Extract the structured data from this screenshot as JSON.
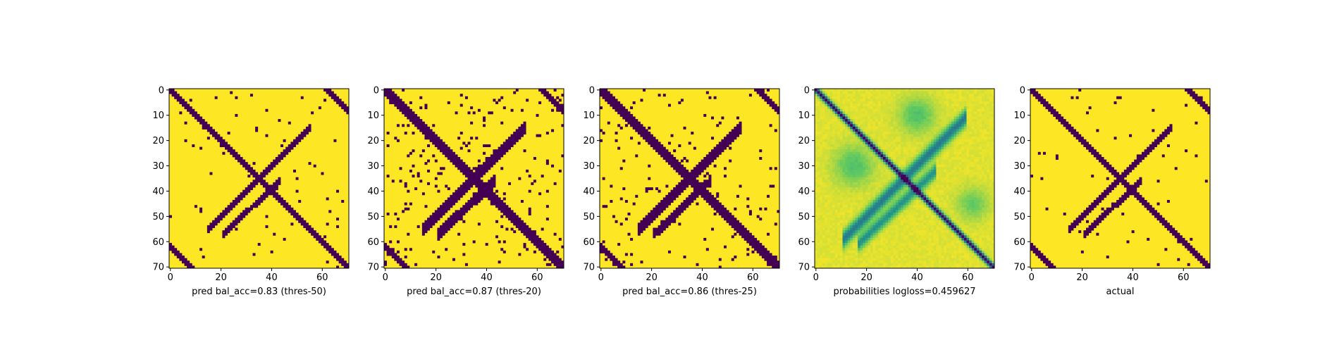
{
  "palette": {
    "low": "#440154",
    "mid_dark": "#3b528b",
    "mid": "#21918c",
    "mid_light": "#5ec962",
    "high": "#fde725"
  },
  "chart_data": [
    {
      "type": "heatmap",
      "title": "",
      "xlabel": "pred bal_acc=0.83 (thres-50)",
      "ylabel": "",
      "size": 71,
      "xlim": [
        0,
        70
      ],
      "ylim": [
        70,
        0
      ],
      "xticks": [
        0,
        20,
        40,
        60
      ],
      "yticks": [
        0,
        10,
        20,
        30,
        40,
        50,
        60,
        70
      ],
      "value_encoding": "0 = dark purple (contact), 1 = yellow (no contact)",
      "values": "binary contact map: main diagonal band, anti-diagonal band crossing near (35,35), off-diagonal corner bands"
    },
    {
      "type": "heatmap",
      "title": "",
      "xlabel": "pred bal_acc=0.87 (thres-20)",
      "ylabel": "",
      "size": 71,
      "xlim": [
        0,
        70
      ],
      "ylim": [
        70,
        0
      ],
      "xticks": [
        0,
        20,
        40,
        60
      ],
      "yticks": [
        0,
        10,
        20,
        30,
        40,
        50,
        60,
        70
      ],
      "value_encoding": "0 = dark purple (contact), 1 = yellow (no contact)",
      "values": "binary contact map: thicker diagonal and anti-diagonal bands with more scattered blobs"
    },
    {
      "type": "heatmap",
      "title": "",
      "xlabel": "pred bal_acc=0.86 (thres-25)",
      "ylabel": "",
      "size": 71,
      "xlim": [
        0,
        70
      ],
      "ylim": [
        70,
        0
      ],
      "xticks": [
        0,
        20,
        40,
        60
      ],
      "yticks": [
        0,
        10,
        20,
        30,
        40,
        50,
        60,
        70
      ],
      "value_encoding": "0 = dark purple (contact), 1 = yellow (no contact)",
      "values": "binary contact map: diagonal and anti-diagonal bands with moderate scattered blobs"
    },
    {
      "type": "heatmap",
      "title": "",
      "xlabel": "probabilities logloss=0.459627",
      "ylabel": "",
      "size": 71,
      "xlim": [
        0,
        70
      ],
      "ylim": [
        70,
        0
      ],
      "xticks": [
        0,
        20,
        40,
        60
      ],
      "yticks": [
        0,
        10,
        20,
        30,
        40,
        50,
        60,
        70
      ],
      "value_encoding": "continuous 0..1 viridis, dark = high contact probability",
      "values": "continuous probability map: strong dark diagonal, teal/green diffuse anti-diagonal and off-diagonal structure"
    },
    {
      "type": "heatmap",
      "title": "",
      "xlabel": "actual",
      "ylabel": "",
      "size": 71,
      "xlim": [
        0,
        70
      ],
      "ylim": [
        70,
        0
      ],
      "xticks": [
        0,
        20,
        40,
        60
      ],
      "yticks": [
        0,
        10,
        20,
        30,
        40,
        50,
        60,
        70
      ],
      "value_encoding": "0 = dark purple (contact), 1 = yellow (no contact)",
      "values": "binary ground-truth contact map: thin diagonal and anti-diagonal bands, small isolated blobs"
    }
  ]
}
